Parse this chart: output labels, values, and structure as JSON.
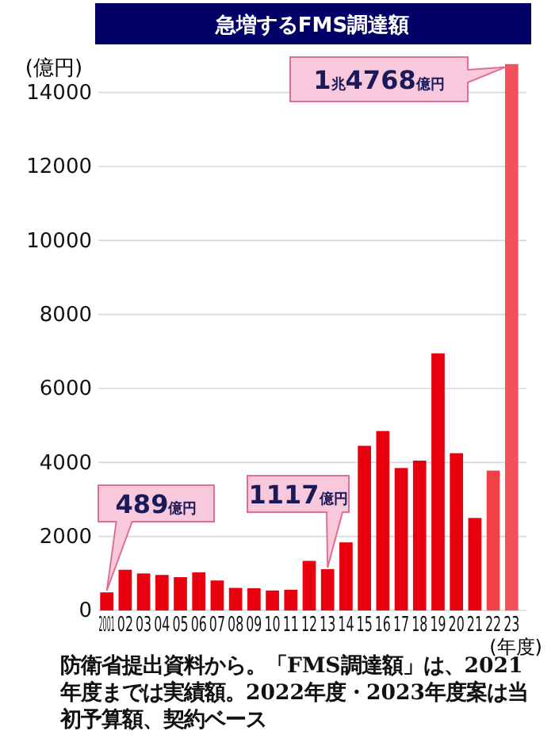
{
  "chart_data": {
    "type": "bar",
    "title": "急増するFMS調達額",
    "ylabel": "(億円)",
    "xlabel": "(年度)",
    "categories": [
      "2001",
      "02",
      "03",
      "04",
      "05",
      "06",
      "07",
      "08",
      "09",
      "10",
      "11",
      "12",
      "13",
      "14",
      "15",
      "16",
      "17",
      "18",
      "19",
      "20",
      "21",
      "22",
      "23"
    ],
    "values": [
      489,
      1100,
      1000,
      960,
      900,
      1030,
      810,
      610,
      600,
      540,
      560,
      1340,
      1117,
      1840,
      4450,
      4850,
      3850,
      4050,
      6950,
      4250,
      2500,
      3780,
      14768
    ],
    "colors": [
      "#e8000e",
      "#e8000e",
      "#e8000e",
      "#e8000e",
      "#e8000e",
      "#e8000e",
      "#e8000e",
      "#e8000e",
      "#e8000e",
      "#e8000e",
      "#e8000e",
      "#e8000e",
      "#e8000e",
      "#e8000e",
      "#e8000e",
      "#e8000e",
      "#e8000e",
      "#e8000e",
      "#e8000e",
      "#e8000e",
      "#e8000e",
      "#f24048",
      "#f4525a"
    ],
    "ylim": [
      0,
      15000
    ],
    "yticks": [
      0,
      2000,
      4000,
      6000,
      8000,
      10000,
      12000,
      14000
    ],
    "grid": "y",
    "annotations": [
      {
        "text": "489億円",
        "x": "2001",
        "y": 489
      },
      {
        "text": "1117億円",
        "x": "13",
        "y": 1117
      },
      {
        "text": "1兆4768億円",
        "x": "23",
        "y": 14768
      },
      "防衛省提出資料から。「FMS調達額」は、2021年度までは実績額。2022年度・2023年度案は当初予算額、契約ベース"
    ]
  }
}
